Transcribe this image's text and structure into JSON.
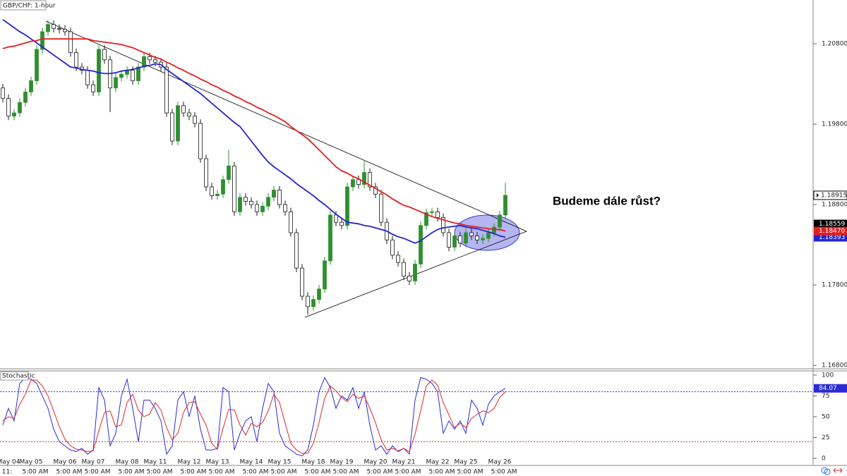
{
  "chart_data": [
    {
      "type": "candlestick",
      "title": "GBP/CHF: 1-hour",
      "annotation": "Budeme dále růst?",
      "categories": [
        null,
        "May 04",
        null,
        null,
        null,
        "May 05",
        null,
        null,
        null,
        null,
        null,
        "May 06",
        null,
        null,
        null,
        null,
        "May 07",
        null,
        null,
        null,
        null,
        null,
        "May 08",
        null,
        null,
        null,
        null,
        "May 11",
        null,
        null,
        null,
        null,
        null,
        "May 12",
        null,
        null,
        null,
        null,
        "May 13",
        null,
        null,
        null,
        null,
        null,
        "May 14",
        null,
        null,
        null,
        null,
        "May 15",
        null,
        null,
        null,
        null,
        null,
        "May 18",
        null,
        null,
        null,
        null,
        "May 19",
        null,
        null,
        null,
        null,
        null,
        "May 20",
        null,
        null,
        null,
        null,
        "May 21",
        null,
        null,
        null,
        null,
        null,
        "May 22",
        null,
        null,
        null,
        null,
        "May 25",
        null,
        null,
        null,
        null,
        null,
        "May 26",
        null
      ],
      "time_labels": [
        "11:",
        null,
        null,
        null,
        null,
        "5:00 AM",
        null,
        null,
        null,
        null,
        null,
        "5:00 AM",
        null,
        null,
        null,
        null,
        "5:00 AM",
        null,
        null,
        null,
        null,
        null,
        "5:00 AM",
        null,
        null,
        null,
        null,
        "5:00 AM",
        null,
        null,
        null,
        null,
        null,
        "5:00 AM",
        null,
        null,
        null,
        null,
        "5:00 AM",
        null,
        null,
        null,
        null,
        null,
        "5:00 AM",
        null,
        null,
        null,
        null,
        "5:00 AM",
        null,
        null,
        null,
        null,
        null,
        "5:00 AM",
        null,
        null,
        null,
        null,
        "5:00 AM",
        null,
        null,
        null,
        null,
        null,
        "5:00 AM",
        null,
        null,
        null,
        null,
        "5:00 AM",
        null,
        null,
        null,
        null,
        null,
        "5:00 AM",
        null,
        null,
        null,
        null,
        "5:00 AM",
        null,
        null,
        null,
        null,
        null,
        "5:00 AM",
        null
      ],
      "open": [
        1.2025,
        1.2012,
        1.199,
        1.1994,
        1.2007,
        1.202,
        1.2034,
        1.2073,
        1.2095,
        1.2104,
        1.2099,
        1.2098,
        1.2095,
        1.2069,
        1.2051,
        1.2047,
        1.2029,
        1.202,
        1.2073,
        1.206,
        1.2025,
        1.2038,
        1.2042,
        1.2047,
        1.2034,
        1.2051,
        1.2064,
        1.206,
        1.2057,
        1.2051,
        1.1994,
        1.1959,
        1.2003,
        1.1994,
        1.199,
        1.1981,
        1.1937,
        1.1902,
        1.1891,
        1.1893,
        1.1911,
        1.1928,
        1.1871,
        1.1889,
        1.1884,
        1.188,
        1.1871,
        1.1878,
        1.1889,
        1.1898,
        1.188,
        1.1871,
        1.1845,
        1.1801,
        1.1766,
        1.1753,
        1.1762,
        1.1775,
        1.181,
        1.1867,
        1.1858,
        1.1854,
        1.1902,
        1.1911,
        1.1905,
        1.192,
        1.1902,
        1.1893,
        1.1858,
        1.1836,
        1.1817,
        1.1808,
        1.1791,
        1.1785,
        1.1806,
        1.1854,
        1.187,
        1.1871,
        1.1864,
        1.1845,
        1.1827,
        1.1841,
        1.1832,
        1.1845,
        1.1841,
        1.1836,
        1.1838,
        1.1845,
        1.1852,
        1.1867
      ],
      "high": [
        1.203,
        1.2017,
        1.1999,
        1.2012,
        1.2025,
        1.2039,
        1.2078,
        1.21,
        1.2109,
        1.2109,
        1.2104,
        1.2103,
        1.21,
        1.2074,
        1.2056,
        1.2052,
        1.2034,
        1.2078,
        1.2078,
        1.2065,
        1.2043,
        1.2047,
        1.2052,
        1.2052,
        1.2056,
        1.2069,
        1.2069,
        1.2065,
        1.2062,
        1.2056,
        1.1999,
        1.2008,
        1.2008,
        1.1999,
        1.1995,
        1.1986,
        1.1942,
        1.1907,
        1.1898,
        1.1916,
        1.1948,
        1.1933,
        1.1894,
        1.1894,
        1.1889,
        1.1885,
        1.1883,
        1.1894,
        1.1903,
        1.1903,
        1.1885,
        1.1876,
        1.185,
        1.1806,
        1.1771,
        1.1767,
        1.178,
        1.1815,
        1.1872,
        1.1872,
        1.1863,
        1.1907,
        1.1916,
        1.1916,
        1.1934,
        1.1925,
        1.1907,
        1.1898,
        1.1863,
        1.1841,
        1.1822,
        1.1813,
        1.1796,
        1.1811,
        1.1859,
        1.1875,
        1.1876,
        1.1876,
        1.1869,
        1.185,
        1.1846,
        1.1846,
        1.185,
        1.185,
        1.1846,
        1.1843,
        1.185,
        1.1857,
        1.1872,
        1.1907
      ],
      "low": [
        1.2007,
        1.1985,
        1.1985,
        1.1989,
        1.2002,
        1.2015,
        1.2029,
        1.2068,
        1.209,
        1.2094,
        1.2093,
        1.209,
        1.2064,
        1.2046,
        1.2042,
        1.2024,
        1.2015,
        1.2015,
        1.2055,
        1.1995,
        1.202,
        1.2033,
        1.2037,
        1.2029,
        1.2029,
        1.2046,
        1.2055,
        1.2052,
        1.2046,
        1.1989,
        1.1954,
        1.1954,
        1.1989,
        1.1985,
        1.1976,
        1.1932,
        1.1897,
        1.1886,
        1.1886,
        1.1888,
        1.1906,
        1.1866,
        1.1866,
        1.1879,
        1.1875,
        1.1866,
        1.1866,
        1.1873,
        1.1884,
        1.1875,
        1.1866,
        1.184,
        1.1796,
        1.1761,
        1.1743,
        1.1748,
        1.1757,
        1.177,
        1.1805,
        1.1853,
        1.1849,
        1.1849,
        1.1897,
        1.19,
        1.19,
        1.1897,
        1.1888,
        1.1853,
        1.1831,
        1.1812,
        1.1803,
        1.1786,
        1.178,
        1.178,
        1.1801,
        1.1849,
        1.1865,
        1.1859,
        1.184,
        1.1822,
        1.1822,
        1.1827,
        1.1827,
        1.1836,
        1.1831,
        1.1831,
        1.1833,
        1.184,
        1.1847,
        1.1862
      ],
      "close": [
        1.2012,
        1.199,
        1.1994,
        1.2007,
        1.202,
        1.2034,
        1.2073,
        1.2095,
        1.2104,
        1.2099,
        1.2098,
        1.2095,
        1.2069,
        1.2051,
        1.2047,
        1.2029,
        1.202,
        1.2073,
        1.206,
        1.2025,
        1.2038,
        1.2042,
        1.2047,
        1.2034,
        1.2051,
        1.2064,
        1.206,
        1.2057,
        1.2051,
        1.1994,
        1.1959,
        1.2003,
        1.1994,
        1.199,
        1.1981,
        1.1937,
        1.1902,
        1.1891,
        1.1893,
        1.1911,
        1.1928,
        1.1871,
        1.1889,
        1.1884,
        1.188,
        1.1871,
        1.1878,
        1.1889,
        1.1898,
        1.188,
        1.1871,
        1.1845,
        1.1801,
        1.1766,
        1.1753,
        1.1762,
        1.1775,
        1.181,
        1.1867,
        1.1858,
        1.1854,
        1.1902,
        1.1911,
        1.1905,
        1.192,
        1.1902,
        1.1893,
        1.1858,
        1.1836,
        1.1817,
        1.1808,
        1.1791,
        1.1785,
        1.1806,
        1.1854,
        1.187,
        1.1871,
        1.1864,
        1.1845,
        1.1827,
        1.1841,
        1.1832,
        1.1845,
        1.1841,
        1.1836,
        1.1838,
        1.1845,
        1.1852,
        1.1867,
        1.18915
      ],
      "up_color": "#2f8f2f",
      "down_color": "#1a1a1a",
      "overlays": [
        {
          "color": "#2424d0",
          "values": [
            1.211,
            1.2105,
            1.21,
            1.2095,
            1.2091,
            1.2086,
            1.2081,
            1.2076,
            1.2071,
            1.2066,
            1.2061,
            1.2056,
            1.2051,
            1.205,
            1.2048,
            1.2047,
            1.2046,
            1.2044,
            1.2043,
            1.2043,
            1.2044,
            1.2046,
            1.2047,
            1.2048,
            1.205,
            1.2052,
            1.2053,
            1.2055,
            1.2054,
            1.2048,
            1.2043,
            1.2038,
            1.2033,
            1.2028,
            1.2023,
            1.2018,
            1.2012,
            1.2006,
            1.2,
            1.1994,
            1.1988,
            1.1982,
            1.1977,
            1.1968,
            1.1959,
            1.195,
            1.1941,
            1.1933,
            1.1927,
            1.1922,
            1.1917,
            1.1912,
            1.1906,
            1.1901,
            1.1896,
            1.1891,
            1.1885,
            1.188,
            1.1874,
            1.1868,
            1.1863,
            1.1858,
            1.1857,
            1.1856,
            1.1854,
            1.1853,
            1.1851,
            1.1849,
            1.1847,
            1.1843,
            1.184,
            1.1838,
            1.1835,
            1.1832,
            1.1835,
            1.184,
            1.1845,
            1.1849,
            1.1851,
            1.1852,
            1.1853,
            1.1854,
            1.1852,
            1.1851,
            1.185,
            1.1848,
            1.1846,
            1.1844,
            1.1841,
            1.18393
          ]
        },
        {
          "color": "#e02020",
          "values": [
            1.2074,
            1.2076,
            1.2077,
            1.2079,
            1.2081,
            1.2083,
            1.2084,
            1.2086,
            1.2086,
            1.2086,
            1.2086,
            1.2086,
            1.2086,
            1.2086,
            1.2086,
            1.2086,
            1.2084,
            1.2083,
            1.2082,
            1.2081,
            1.208,
            1.2079,
            1.2077,
            1.2075,
            1.2072,
            1.2069,
            1.2066,
            1.2063,
            1.2061,
            1.2057,
            1.2054,
            1.205,
            1.2047,
            1.2043,
            1.204,
            1.2036,
            1.2033,
            1.2029,
            1.2026,
            1.2022,
            1.2019,
            1.2015,
            1.2012,
            1.2008,
            1.2005,
            1.2001,
            1.1998,
            1.1994,
            1.1991,
            1.1987,
            1.1983,
            1.1977,
            1.1972,
            1.1967,
            1.1962,
            1.1955,
            1.1948,
            1.1941,
            1.1934,
            1.1927,
            1.1922,
            1.1919,
            1.1915,
            1.1912,
            1.1908,
            1.1904,
            1.19,
            1.1896,
            1.1892,
            1.1887,
            1.1883,
            1.1879,
            1.1877,
            1.1874,
            1.1871,
            1.1868,
            1.1865,
            1.1863,
            1.1861,
            1.1859,
            1.1857,
            1.1856,
            1.1854,
            1.1853,
            1.1852,
            1.1851,
            1.185,
            1.1849,
            1.1849,
            1.1847
          ],
          "value_labels": [
            null,
            null,
            null,
            null,
            null,
            null,
            null,
            null,
            null,
            null,
            null,
            null,
            null,
            null,
            null,
            null,
            null,
            null,
            null,
            null,
            null,
            null,
            null,
            null,
            null,
            null,
            null,
            null,
            null,
            null,
            null,
            null,
            null,
            null,
            null,
            null,
            null,
            null,
            null,
            null,
            null,
            null,
            null,
            null,
            null,
            null,
            null,
            null,
            null,
            null,
            null,
            null,
            null,
            null,
            null,
            null,
            null,
            null,
            null,
            null,
            null,
            null,
            null,
            null,
            null,
            null,
            null,
            null,
            null,
            null,
            null,
            null,
            null,
            null,
            null,
            null,
            null,
            null,
            null,
            null,
            null,
            null,
            null,
            null,
            null,
            null,
            null,
            null,
            null,
            "1.18470"
          ]
        }
      ],
      "reference_price": 1.18559,
      "ylim": [
        1.16766,
        1.21344
      ],
      "yticks": [
        {
          "value": 1.168,
          "label": "1.16800"
        },
        {
          "value": 1.178,
          "label": "1.17800"
        },
        {
          "value": 1.188,
          "label": "1.18800"
        },
        {
          "value": 1.198,
          "label": "1.19800"
        },
        {
          "value": 1.208,
          "label": "1.20800"
        }
      ]
    },
    {
      "type": "line",
      "title": "Stochastic",
      "series": [
        {
          "color": "#2a2ad8",
          "values": [
            40,
            60,
            45,
            90,
            97,
            95,
            90,
            75,
            60,
            35,
            20,
            15,
            10,
            8,
            12,
            5,
            10,
            85,
            70,
            15,
            30,
            75,
            95,
            60,
            20,
            70,
            70,
            60,
            45,
            5,
            15,
            70,
            80,
            50,
            75,
            35,
            10,
            10,
            12,
            85,
            80,
            10,
            30,
            45,
            50,
            20,
            60,
            90,
            80,
            30,
            15,
            10,
            5,
            3,
            10,
            40,
            80,
            97,
            85,
            60,
            75,
            70,
            85,
            60,
            80,
            40,
            10,
            15,
            5,
            15,
            8,
            12,
            5,
            70,
            97,
            95,
            90,
            80,
            30,
            45,
            35,
            45,
            30,
            70,
            60,
            40,
            65,
            75,
            80,
            84.07
          ]
        },
        {
          "color": "#e02828",
          "values": [
            45,
            50,
            48,
            65,
            77,
            94,
            94,
            87,
            75,
            57,
            38,
            23,
            15,
            11,
            10,
            8,
            9,
            33,
            55,
            57,
            38,
            40,
            67,
            77,
            58,
            50,
            53,
            67,
            58,
            37,
            22,
            30,
            55,
            67,
            68,
            53,
            40,
            18,
            11,
            36,
            59,
            58,
            40,
            28,
            42,
            38,
            43,
            57,
            77,
            67,
            42,
            18,
            10,
            6,
            6,
            18,
            43,
            72,
            87,
            81,
            73,
            68,
            77,
            72,
            75,
            60,
            43,
            22,
            10,
            12,
            9,
            12,
            8,
            29,
            57,
            87,
            94,
            88,
            67,
            52,
            37,
            42,
            37,
            48,
            53,
            57,
            55,
            60,
            73,
            80
          ]
        }
      ],
      "levels": [
        {
          "value": 80,
          "color": "#3030c0"
        },
        {
          "value": 20,
          "color": "#d83030"
        }
      ],
      "ylim": [
        -8.5,
        105
      ],
      "yticks": [
        0,
        25,
        50,
        75,
        100
      ]
    }
  ]
}
